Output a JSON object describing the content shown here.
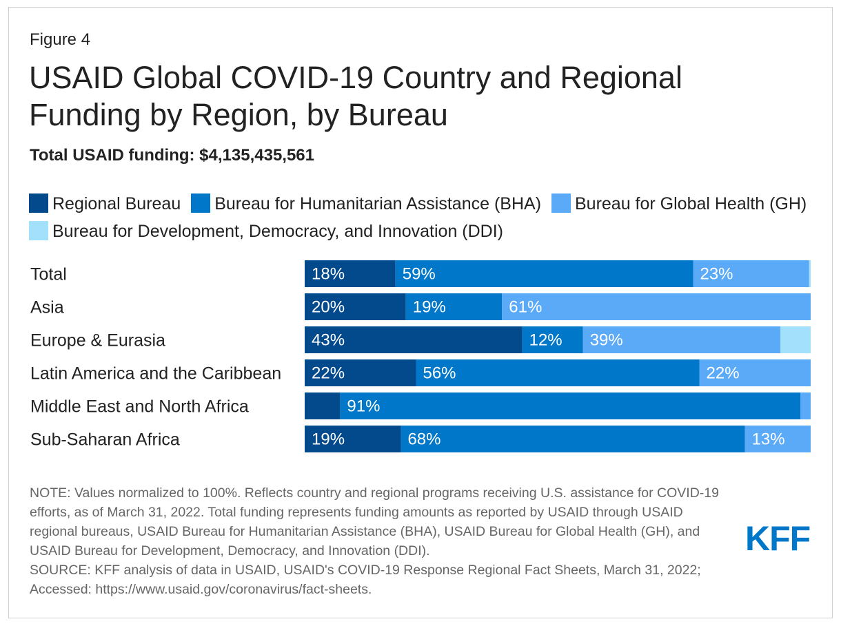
{
  "figure_label": "Figure 4",
  "title": "USAID Global COVID-19 Country and Regional Funding by Region, by Bureau",
  "subtitle": "Total USAID funding: $4,135,435,561",
  "note": "NOTE: Values normalized to 100%. Reflects country and regional programs receiving U.S. assistance for COVID-19 efforts, as of March 31, 2022. Total funding represents funding amounts as reported by USAID through USAID regional bureaus, USAID Bureau for Humanitarian Assistance (BHA), USAID Bureau for Global Health (GH), and USAID Bureau for Development, Democracy, and Innovation (DDI).",
  "source": "SOURCE: KFF analysis of data in USAID, USAID's COVID-19 Response Regional Fact Sheets, March 31, 2022; Accessed: https://www.usaid.gov/coronavirus/fact-sheets.",
  "logo_text": "KFF",
  "colors": {
    "regional": "#034a8c",
    "bha": "#0077c8",
    "gh": "#5aaaf8",
    "ddi": "#a3e0fb",
    "logo": "#0077c8"
  },
  "chart_data": {
    "type": "bar",
    "orientation": "horizontal",
    "stacked": true,
    "normalized": true,
    "xlim": [
      0,
      100
    ],
    "legend_placement": "top",
    "grid": false,
    "categories": [
      "Total",
      "Asia",
      "Europe & Eurasia",
      "Latin America and the Caribbean",
      "Middle East and North Africa",
      "Sub-Saharan Africa"
    ],
    "series": [
      {
        "name": "Regional Bureau",
        "color": "#034a8c",
        "values": [
          18,
          20,
          43,
          22,
          7,
          19
        ],
        "labels": [
          "18%",
          "20%",
          "43%",
          "22%",
          "",
          "19%"
        ]
      },
      {
        "name": "Bureau for Humanitarian Assistance (BHA)",
        "color": "#0077c8",
        "values": [
          59,
          19,
          12,
          56,
          91,
          68
        ],
        "labels": [
          "59%",
          "19%",
          "12%",
          "56%",
          "91%",
          "68%"
        ]
      },
      {
        "name": "Bureau for Global Health (GH)",
        "color": "#5aaaf8",
        "values": [
          23,
          61,
          39,
          22,
          2,
          13
        ],
        "labels": [
          "23%",
          "61%",
          "39%",
          "22%",
          "",
          "13%"
        ]
      },
      {
        "name": "Bureau for Development, Democracy, and Innovation (DDI)",
        "color": "#a3e0fb",
        "values": [
          0.3,
          0,
          6,
          0,
          0,
          0
        ],
        "labels": [
          "",
          "",
          "",
          "",
          "",
          ""
        ]
      }
    ]
  }
}
